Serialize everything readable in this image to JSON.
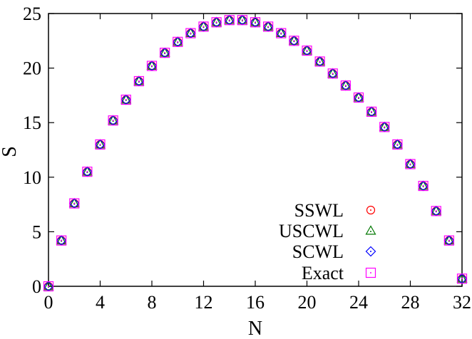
{
  "chart_data": {
    "type": "scatter",
    "title": "",
    "xlabel": "N",
    "ylabel": "S",
    "xlim": [
      0,
      32
    ],
    "ylim": [
      0,
      25
    ],
    "xticks": [
      0,
      4,
      8,
      12,
      16,
      20,
      24,
      28,
      32
    ],
    "yticks": [
      0,
      5,
      10,
      15,
      20,
      25
    ],
    "grid": false,
    "legend_position": "bottom-right",
    "x": [
      0,
      1,
      2,
      3,
      4,
      5,
      6,
      7,
      8,
      9,
      10,
      11,
      12,
      13,
      14,
      15,
      16,
      17,
      18,
      19,
      20,
      21,
      22,
      23,
      24,
      25,
      26,
      27,
      28,
      29,
      30,
      31,
      32
    ],
    "series": [
      {
        "name": "SSWL",
        "marker": "circle",
        "color": "#ff0000",
        "values": [
          0.0,
          4.2,
          7.6,
          10.5,
          13.0,
          15.2,
          17.1,
          18.8,
          20.2,
          21.4,
          22.4,
          23.2,
          23.8,
          24.2,
          24.4,
          24.4,
          24.2,
          23.8,
          23.2,
          22.5,
          21.6,
          20.6,
          19.5,
          18.4,
          17.3,
          16.0,
          14.6,
          13.0,
          11.2,
          9.2,
          6.9,
          4.2,
          0.7
        ]
      },
      {
        "name": "USCWL",
        "marker": "triangle",
        "color": "#007700",
        "values": [
          0.0,
          4.2,
          7.6,
          10.5,
          13.0,
          15.2,
          17.1,
          18.8,
          20.2,
          21.4,
          22.4,
          23.2,
          23.8,
          24.2,
          24.4,
          24.4,
          24.2,
          23.8,
          23.2,
          22.5,
          21.6,
          20.6,
          19.5,
          18.4,
          17.3,
          16.0,
          14.6,
          13.0,
          11.2,
          9.2,
          6.9,
          4.2,
          0.7
        ]
      },
      {
        "name": "SCWL",
        "marker": "diamond",
        "color": "#0000ff",
        "values": [
          0.0,
          4.2,
          7.6,
          10.5,
          13.0,
          15.2,
          17.1,
          18.8,
          20.2,
          21.4,
          22.4,
          23.2,
          23.8,
          24.2,
          24.4,
          24.4,
          24.2,
          23.8,
          23.2,
          22.5,
          21.6,
          20.6,
          19.5,
          18.4,
          17.3,
          16.0,
          14.6,
          13.0,
          11.2,
          9.2,
          6.9,
          4.2,
          0.7
        ]
      },
      {
        "name": "Exact",
        "marker": "square-dot",
        "color": "#ff00ff",
        "values": [
          0.0,
          4.2,
          7.6,
          10.5,
          13.0,
          15.2,
          17.1,
          18.8,
          20.2,
          21.4,
          22.4,
          23.2,
          23.8,
          24.2,
          24.4,
          24.4,
          24.2,
          23.8,
          23.2,
          22.5,
          21.6,
          20.6,
          19.5,
          18.4,
          17.3,
          16.0,
          14.6,
          13.0,
          11.2,
          9.2,
          6.9,
          4.2,
          0.7
        ]
      }
    ]
  }
}
